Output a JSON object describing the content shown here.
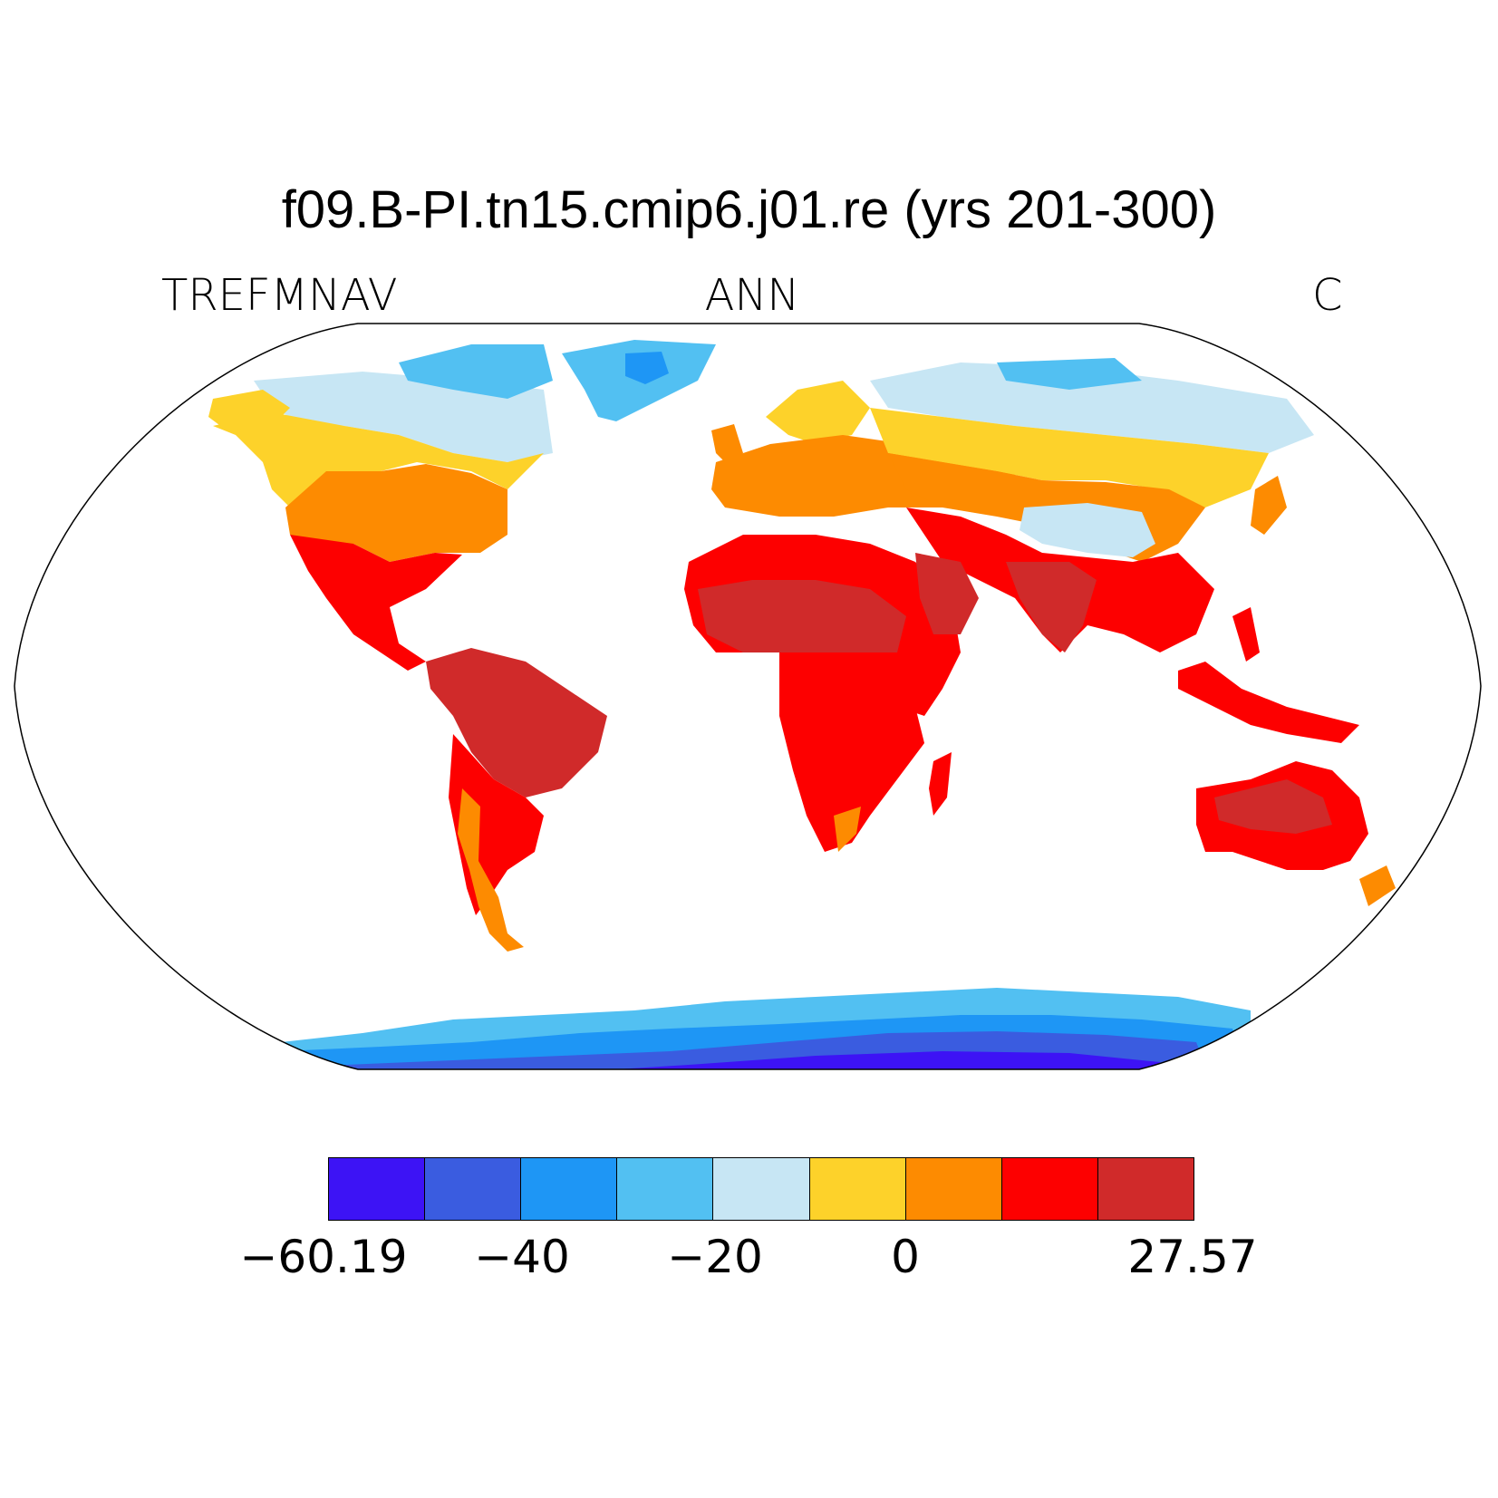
{
  "title": "f09.B-PI.tn15.cmip6.j01.re (yrs 201-300)",
  "subtitle_left": "TREFMNAV",
  "subtitle_center": "ANN",
  "subtitle_right": "C",
  "colorbar": {
    "colors": [
      "#3d13f5",
      "#3a5ce0",
      "#1e96f5",
      "#52c0f2",
      "#c7e6f4",
      "#fdd22a",
      "#fd8b01",
      "#fd0000",
      "#d02a2a"
    ],
    "tick_labels": [
      "−60.19",
      "−40",
      "−20",
      "0",
      "27.57"
    ]
  },
  "chart_data": {
    "type": "heatmap",
    "title": "f09.B-PI.tn15.cmip6.j01.re (yrs 201-300)",
    "variable": "TREFMNAV",
    "season": "ANN",
    "units": "C",
    "projection": "Robinson",
    "range": [
      -60.19,
      27.57
    ],
    "levels": [
      -60.19,
      -50,
      -40,
      -30,
      -20,
      -10,
      0,
      10,
      20,
      27.57
    ],
    "tick_labels": [
      "−60.19",
      "−40",
      "−20",
      "0",
      "27.57"
    ]
  }
}
